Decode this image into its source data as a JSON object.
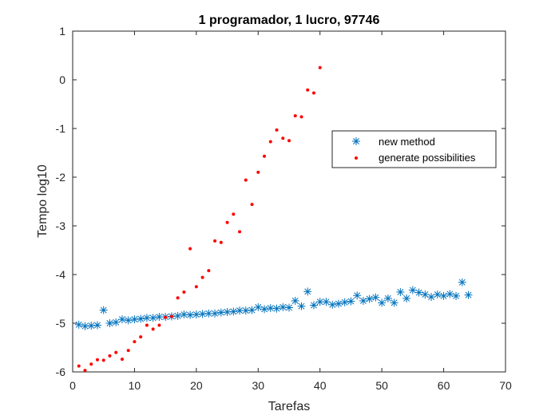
{
  "chart_data": {
    "type": "scatter",
    "title": "1 programador, 1 lucro, 97746",
    "xlabel": "Tarefas",
    "ylabel": "Tempo log10",
    "xlim": [
      0,
      70
    ],
    "ylim": [
      -6,
      1
    ],
    "xticks": [
      0,
      10,
      20,
      30,
      40,
      50,
      60,
      70
    ],
    "yticks": [
      -6,
      -5,
      -4,
      -3,
      -2,
      -1,
      0,
      1
    ],
    "grid": false,
    "legend_position": "right",
    "series": [
      {
        "name": "new method",
        "marker": "asterisk",
        "color": "#0072BD",
        "x": [
          1,
          2,
          3,
          4,
          5,
          6,
          7,
          8,
          9,
          10,
          11,
          12,
          13,
          14,
          15,
          16,
          17,
          18,
          19,
          20,
          21,
          22,
          23,
          24,
          25,
          26,
          27,
          28,
          29,
          30,
          31,
          32,
          33,
          34,
          35,
          36,
          37,
          38,
          39,
          40,
          41,
          42,
          43,
          44,
          45,
          46,
          47,
          48,
          49,
          50,
          51,
          52,
          53,
          54,
          55,
          56,
          57,
          58,
          59,
          60,
          61,
          62,
          63,
          64
        ],
        "y": [
          -5.03,
          -5.06,
          -5.05,
          -5.04,
          -4.73,
          -5.0,
          -4.98,
          -4.92,
          -4.94,
          -4.92,
          -4.91,
          -4.89,
          -4.89,
          -4.87,
          -4.87,
          -4.86,
          -4.85,
          -4.82,
          -4.83,
          -4.82,
          -4.81,
          -4.8,
          -4.8,
          -4.78,
          -4.77,
          -4.76,
          -4.74,
          -4.74,
          -4.73,
          -4.67,
          -4.71,
          -4.69,
          -4.7,
          -4.67,
          -4.68,
          -4.54,
          -4.65,
          -4.35,
          -4.63,
          -4.56,
          -4.56,
          -4.62,
          -4.6,
          -4.57,
          -4.55,
          -4.43,
          -4.54,
          -4.5,
          -4.47,
          -4.58,
          -4.49,
          -4.58,
          -4.36,
          -4.49,
          -4.32,
          -4.37,
          -4.41,
          -4.46,
          -4.41,
          -4.44,
          -4.4,
          -4.44,
          -4.16,
          -4.42
        ]
      },
      {
        "name": "generate possibilities",
        "marker": "dot",
        "color": "#FF0000",
        "x": [
          1,
          2,
          3,
          4,
          5,
          6,
          7,
          8,
          9,
          10,
          11,
          12,
          13,
          14,
          15,
          16,
          17,
          18,
          19,
          20,
          21,
          22,
          23,
          24,
          25,
          26,
          27,
          28,
          29,
          30,
          31,
          32,
          33,
          34,
          35,
          36,
          37,
          38,
          39,
          40
        ],
        "y": [
          -5.88,
          -5.97,
          -5.84,
          -5.75,
          -5.76,
          -5.67,
          -5.6,
          -5.74,
          -5.56,
          -5.38,
          -5.28,
          -5.04,
          -5.12,
          -5.04,
          -4.88,
          -4.86,
          -4.48,
          -4.36,
          -3.47,
          -4.25,
          -4.06,
          -3.92,
          -3.31,
          -3.34,
          -2.93,
          -2.76,
          -3.12,
          -2.06,
          -2.56,
          -1.9,
          -1.57,
          -1.27,
          -1.03,
          -1.2,
          -1.25,
          -0.74,
          -0.76,
          -0.21,
          -0.27,
          0.25
        ]
      }
    ]
  }
}
